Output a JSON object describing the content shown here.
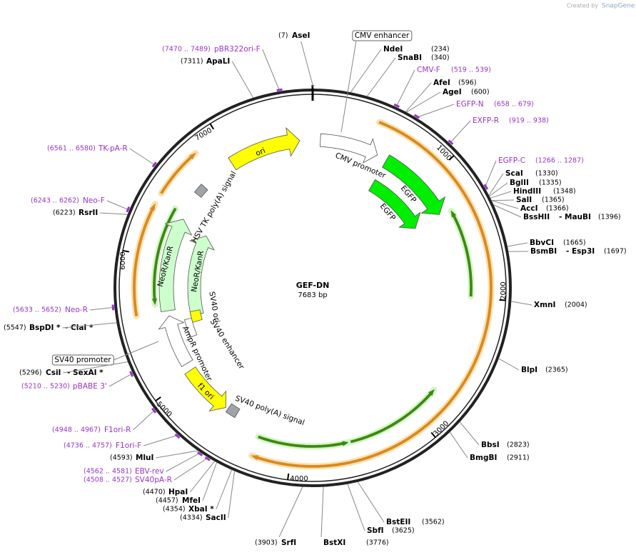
{
  "header": {
    "credit_prefix": "Created by",
    "credit_brand": "SnapGene"
  },
  "map": {
    "name": "GEF-DN",
    "size": "7683 bp",
    "ticks": [
      "1000",
      "2000",
      "3000",
      "4000",
      "5000",
      "6000",
      "7000"
    ]
  },
  "enzymes": [
    {
      "name": "AseI",
      "position": "(7)"
    },
    {
      "name": "NdeI",
      "position": "(234)"
    },
    {
      "name": "SnaBI",
      "position": "(340)"
    },
    {
      "name": "AfeI",
      "position": "(596)"
    },
    {
      "name": "AgeI",
      "position": "(600)"
    },
    {
      "name": "ScaI",
      "position": "(1330)"
    },
    {
      "name": "BglII",
      "position": "(1335)"
    },
    {
      "name": "HindIII",
      "position": "(1348)"
    },
    {
      "name": "SalI",
      "position": "(1365)"
    },
    {
      "name": "AccI",
      "position": "(1366)"
    },
    {
      "name": "BssHII",
      "also": "- MauBI",
      "position": "(1396)"
    },
    {
      "name": "BbvCI",
      "position": "(1665)"
    },
    {
      "name": "BsmBI",
      "also": "- Esp3I",
      "position": "(1697)"
    },
    {
      "name": "XmnI",
      "position": "(2004)"
    },
    {
      "name": "BlpI",
      "position": "(2365)"
    },
    {
      "name": "BbsI",
      "position": "(2823)"
    },
    {
      "name": "BmgBI",
      "position": "(2911)"
    },
    {
      "name": "BstEII",
      "position": "(3562)"
    },
    {
      "name": "SbfI",
      "position": "(3625)"
    },
    {
      "name": "BstXI",
      "position": "(3776)"
    },
    {
      "name": "SrfI",
      "position": "(3903)"
    },
    {
      "name": "SacII",
      "position": "(4334)"
    },
    {
      "name": "XbaI *",
      "position": "(4354)"
    },
    {
      "name": "MfeI",
      "position": "(4457)"
    },
    {
      "name": "HpaI",
      "position": "(4470)"
    },
    {
      "name": "MluI",
      "position": "(4593)"
    },
    {
      "name": "CsiI",
      "also": "- SexAI *",
      "position": "(5296)"
    },
    {
      "name": "BspDI *",
      "also": "- ClaI *",
      "position": "(5547)"
    },
    {
      "name": "RsrII",
      "position": "(6223)"
    },
    {
      "name": "ApaLI",
      "position": "(7311)"
    }
  ],
  "primers": [
    {
      "name": "pBR322ori-F",
      "range": "(7470 .. 7489)"
    },
    {
      "name": "CMV-F",
      "range": "(519 .. 539)"
    },
    {
      "name": "EGFP-N",
      "range": "(658 .. 679)"
    },
    {
      "name": "EXFP-R",
      "range": "(919 .. 938)"
    },
    {
      "name": "EGFP-C",
      "range": "(1266 .. 1287)"
    },
    {
      "name": "TK-pA-R",
      "range": "(6561 .. 6580)"
    },
    {
      "name": "Neo-F",
      "range": "(6243 .. 6262)"
    },
    {
      "name": "Neo-R",
      "range": "(5633 .. 5652)"
    },
    {
      "name": "pBABE 3'",
      "range": "(5210 .. 5230)"
    },
    {
      "name": "F1ori-R",
      "range": "(4948 .. 4967)"
    },
    {
      "name": "F1ori-F",
      "range": "(4736 .. 4757)"
    },
    {
      "name": "EBV-rev",
      "range": "(4562 .. 4581)"
    },
    {
      "name": "SV40pA-R",
      "range": "(4508 .. 4527)"
    }
  ],
  "features": [
    {
      "label": "ori"
    },
    {
      "label": "CMV promoter"
    },
    {
      "label": "EGFP"
    },
    {
      "label": "EGFP"
    },
    {
      "label": "NeoR/KanR"
    },
    {
      "label": "NeoR/KanR"
    },
    {
      "label": "HSV TK poly(A) signal"
    },
    {
      "label": "SV40 ori"
    },
    {
      "label": "SV40 enhancer"
    },
    {
      "label": "AmpR promoter"
    },
    {
      "label": "f1 ori"
    },
    {
      "label": "SV40 poly(A) signal"
    }
  ],
  "boxed_features": [
    {
      "label": "CMV enhancer"
    },
    {
      "label": "SV40 promoter"
    }
  ]
}
